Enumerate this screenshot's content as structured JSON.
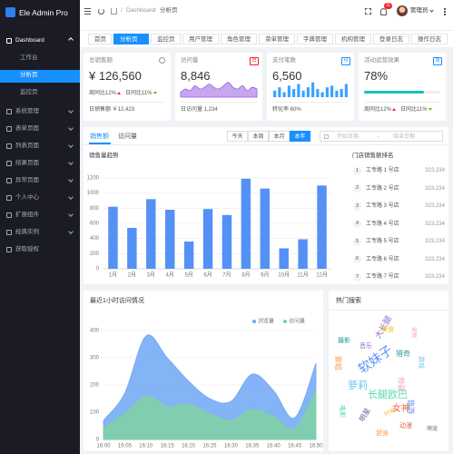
{
  "sidebar": {
    "logo": "Ele Admin Pro",
    "menu": [
      "Dashboard",
      "工作台",
      "分析页",
      "监控页",
      "系统管理",
      "表单页面",
      "列表页面",
      "结果页面",
      "异常页面",
      "个人中心",
      "扩展组件",
      "经典实例",
      "获取授权"
    ]
  },
  "header": {
    "breadcrumb": [
      "Dashboard",
      "分析页"
    ],
    "separator": "/",
    "badge": "11",
    "user": "管理员"
  },
  "tabs": [
    "首页",
    "分析页",
    "监控页",
    "用户管理",
    "角色管理",
    "菜单管理",
    "字典管理",
    "机构管理",
    "登录日志",
    "操作日志"
  ],
  "cards": [
    {
      "title": "总销售额",
      "value": "¥ 126,560",
      "trends": [
        {
          "label": "周同比12%",
          "dir": "up"
        },
        {
          "label": "日同比11%",
          "dir": "down"
        }
      ],
      "footer": "日销售额 ￥12,423"
    },
    {
      "title": "访问量",
      "tag": "日",
      "tag_color": "#f5222d",
      "value": "8,846",
      "footer": "日访问量 1,234"
    },
    {
      "title": "支付笔数",
      "tag": "月",
      "tag_color": "#1890ff",
      "value": "6,560",
      "footer": "转化率 60%"
    },
    {
      "title": "活动运营效果",
      "tag": "周",
      "tag_color": "#1890ff",
      "value": "78%",
      "progress": 78,
      "progress_color": "#13c2c2",
      "trends": [
        {
          "label": "周同比12%",
          "dir": "up"
        },
        {
          "label": "日同比11%",
          "dir": "down"
        }
      ]
    }
  ],
  "sales": {
    "tabs": [
      "销售额",
      "访问量"
    ],
    "periods": [
      "今天",
      "本周",
      "本月",
      "本年"
    ],
    "date_start": "开始日期",
    "date_separator": "-",
    "date_end": "结束日期",
    "ranking_title": "门店销售额排名",
    "ranking": [
      {
        "rank": "1",
        "name": "工专路 1 号店",
        "value": "323,234"
      },
      {
        "rank": "2",
        "name": "工专路 2 号店",
        "value": "323,234"
      },
      {
        "rank": "3",
        "name": "工专路 3 号店",
        "value": "323,234"
      },
      {
        "rank": "4",
        "name": "工专路 4 号店",
        "value": "323,234"
      },
      {
        "rank": "5",
        "name": "工专路 5 号店",
        "value": "323,234"
      },
      {
        "rank": "6",
        "name": "工专路 6 号店",
        "value": "323,234"
      },
      {
        "rank": "7",
        "name": "工专路 7 号店",
        "value": "323,234"
      }
    ]
  },
  "hot_search": {
    "title": "热门搜索",
    "words": [
      "软妹子",
      "长腿欧巴",
      "女神",
      "萝莉",
      "大长腿",
      "御姐",
      "猎奇",
      "帅哥",
      "明星",
      "美食",
      "旅游",
      "电影",
      "动漫",
      "游戏",
      "音乐",
      "健身",
      "摄影",
      "宠物",
      "萌宠",
      "时尚"
    ]
  },
  "chart_data": [
    {
      "type": "bar",
      "title": "销售量趋势",
      "categories": [
        "1月",
        "2月",
        "3月",
        "4月",
        "5月",
        "6月",
        "7月",
        "8月",
        "9月",
        "10月",
        "11月",
        "12月"
      ],
      "values": [
        820,
        540,
        920,
        780,
        360,
        790,
        710,
        1190,
        1060,
        270,
        390,
        1100
      ],
      "color": "#5591f5",
      "ylim": [
        0,
        1200
      ],
      "yticks": [
        0,
        200,
        400,
        600,
        800,
        1000,
        1200
      ],
      "grid": true
    },
    {
      "type": "area",
      "title": "最近1小时访问情况",
      "categories": [
        "16:00",
        "16:05",
        "16:10",
        "16:15",
        "16:20",
        "16:25",
        "16:30",
        "16:35",
        "16:40",
        "16:45",
        "16:50"
      ],
      "series": [
        {
          "name": "浏览量",
          "color": "#6fa6f5",
          "values": [
            70,
            170,
            380,
            300,
            215,
            150,
            140,
            240,
            180,
            80,
            280
          ]
        },
        {
          "name": "访问量",
          "color": "#7fd2a2",
          "values": [
            45,
            95,
            160,
            120,
            130,
            95,
            70,
            110,
            85,
            40,
            180
          ]
        }
      ],
      "ylim": [
        0,
        400
      ],
      "yticks": [
        0,
        100,
        200,
        300,
        400
      ],
      "grid": true,
      "legend": "top-right"
    },
    {
      "type": "area",
      "values": [
        3,
        5,
        4,
        7,
        5,
        6,
        8,
        6,
        5,
        7,
        9,
        6,
        5,
        7,
        4,
        6,
        5
      ],
      "color": "#975fe4",
      "ylim": [
        0,
        10
      ]
    },
    {
      "type": "bar",
      "values": [
        4,
        6,
        3,
        7,
        5,
        8,
        4,
        6,
        9,
        5,
        3,
        6,
        7,
        4,
        5,
        8
      ],
      "color": "#3aa1ff",
      "ylim": [
        0,
        10
      ]
    }
  ]
}
